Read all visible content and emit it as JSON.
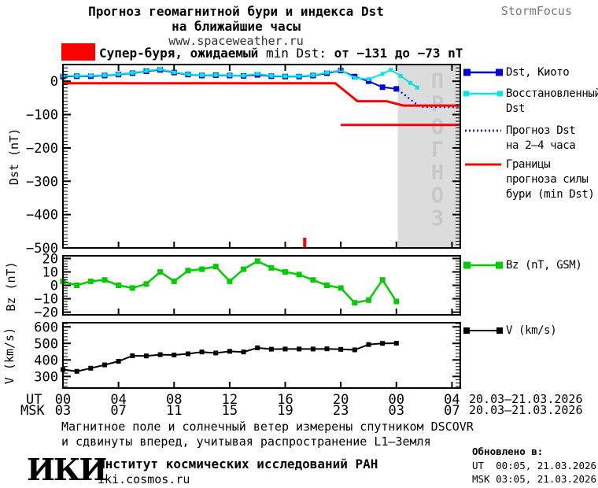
{
  "header": {
    "title_line1": "Прогноз геомагнитной бури и индекса Dst",
    "title_line2": "на ближайшие часы",
    "website": "www.spaceweather.ru",
    "brand": "StormFocus"
  },
  "alert": {
    "level_label": "Супер-буря, ожидаемый",
    "metric_label": "min Dst:",
    "range_label": "от −131 до −73 nT"
  },
  "colors": {
    "kyoto_blue": "#0000dd",
    "reconstructed_cyan": "#00e6e6",
    "forecast_blue": "#2020e0",
    "boundary_red": "#ff0000",
    "bz_green": "#00cc00",
    "v_black": "#000000",
    "alert_red": "#ff0000",
    "forecast_zone_gray": "#dcdcdc",
    "forecast_watermark_gray": "#c8c8c8",
    "brand_gray": "#787878"
  },
  "legend_dst": [
    {
      "lines": [
        "Dst, Киото"
      ]
    },
    {
      "lines": [
        "Восстановленный",
        "Dst"
      ]
    },
    {
      "lines": [
        "Прогноз Dst",
        "на 2–4 часа"
      ]
    },
    {
      "lines": [
        "Границы",
        "прогноза силы",
        "бури (min Dst)"
      ]
    }
  ],
  "legend_bz": {
    "label": "Bz (nT, GSM)"
  },
  "legend_v": {
    "label": "V (km/s)"
  },
  "xaxis": {
    "ut_label": "UT",
    "msk_label": "MSK",
    "ut_ticks": [
      "00",
      "04",
      "08",
      "12",
      "16",
      "20",
      "00",
      "04"
    ],
    "msk_ticks": [
      "03",
      "07",
      "11",
      "15",
      "19",
      "23",
      "03",
      "07"
    ],
    "tick_hours": [
      0,
      4,
      8,
      12,
      16,
      20,
      24,
      28
    ],
    "ut_date_range": "20.03–21.03.2026",
    "msk_date_range": "20.03–21.03.2026"
  },
  "footer": {
    "note_line1": "Магнитное поле и солнечный ветер измерены спутником DSCOVR",
    "note_line2": "и сдвинуты вперед, учитывая распространение L1–Земля",
    "logo": "ИКИ",
    "institute": "Институт космических исследований РАН",
    "website": "iki.cosmos.ru",
    "updated_label": "Обновлено в:",
    "updated_ut": "UT  00:05, 21.03.2026",
    "updated_msk": "MSK 03:05, 21.03.2026"
  },
  "chart_data": [
    {
      "id": "dst",
      "type": "line",
      "ylabel": "Dst (nT)",
      "ylim": [
        -500,
        50
      ],
      "yticks": [
        {
          "v": 0,
          "label": "0"
        },
        {
          "v": -100,
          "label": "−100"
        },
        {
          "v": -200,
          "label": "−200"
        },
        {
          "v": -300,
          "label": "−300"
        },
        {
          "v": -400,
          "label": "−400"
        },
        {
          "v": -500,
          "label": "−500"
        }
      ],
      "xlim_hours": [
        0,
        28.6
      ],
      "series": [
        {
          "id": "kyoto",
          "name": "Dst, Киото",
          "color_key": "kyoto_blue",
          "style": "line+squares",
          "marker_size": 7,
          "width": 2,
          "points": [
            [
              0,
              14
            ],
            [
              1,
              15
            ],
            [
              2,
              15
            ],
            [
              3,
              17
            ],
            [
              4,
              20
            ],
            [
              5,
              24
            ],
            [
              6,
              30
            ],
            [
              7,
              34
            ],
            [
              8,
              26
            ],
            [
              9,
              20
            ],
            [
              10,
              17
            ],
            [
              11,
              18
            ],
            [
              12,
              17
            ],
            [
              13,
              16
            ],
            [
              14,
              19
            ],
            [
              15,
              15
            ],
            [
              16,
              14
            ],
            [
              17,
              14
            ],
            [
              18,
              17
            ],
            [
              19,
              24
            ],
            [
              20,
              32
            ],
            [
              21,
              14
            ],
            [
              22,
              0
            ],
            [
              23,
              -18
            ],
            [
              24,
              -23
            ]
          ]
        },
        {
          "id": "reconstructed",
          "name": "Восстановленный Dst",
          "color_key": "reconstructed_cyan",
          "style": "line+squares",
          "marker_size": 5,
          "width": 2,
          "points": [
            [
              0,
              16
            ],
            [
              1,
              16
            ],
            [
              2,
              17
            ],
            [
              3,
              18
            ],
            [
              4,
              21
            ],
            [
              5,
              25
            ],
            [
              6,
              31
            ],
            [
              7,
              36
            ],
            [
              8,
              27
            ],
            [
              9,
              21
            ],
            [
              10,
              18
            ],
            [
              11,
              19
            ],
            [
              12,
              18
            ],
            [
              13,
              17
            ],
            [
              14,
              22
            ],
            [
              15,
              16
            ],
            [
              16,
              15
            ],
            [
              17,
              15
            ],
            [
              18,
              18
            ],
            [
              19,
              26
            ],
            [
              20,
              33
            ],
            [
              21,
              10
            ],
            [
              22,
              6
            ],
            [
              23,
              22
            ],
            [
              23.6,
              34
            ],
            [
              24.3,
              16
            ],
            [
              25,
              -5
            ],
            [
              25.5,
              -19
            ]
          ]
        },
        {
          "id": "forecast",
          "name": "Прогноз Dst на 2–4 часа",
          "color_key": "forecast_blue",
          "style": "dotted",
          "width": 2.5,
          "points": [
            [
              24.1,
              -25
            ],
            [
              25.7,
              -77
            ],
            [
              28.4,
              -78
            ]
          ]
        },
        {
          "id": "boundary-upper",
          "name": "Границы прогноза силы бури (min Dst)",
          "color_key": "boundary_red",
          "style": "line",
          "width": 3,
          "points": [
            [
              0,
              -6
            ],
            [
              19.6,
              -6
            ],
            [
              21.2,
              -60
            ],
            [
              23.3,
              -60
            ],
            [
              24.5,
              -73
            ],
            [
              28.6,
              -73
            ]
          ]
        },
        {
          "id": "boundary-lower",
          "name": "Границы прогноза силы бури (min Dst)",
          "color_key": "boundary_red",
          "style": "line",
          "width": 3,
          "points": [
            [
              20,
              -131
            ],
            [
              28.6,
              -131
            ]
          ]
        }
      ],
      "annotations": {
        "forecast_zone_start_hour": 24.1,
        "watermark": "ПРОГНОЗ",
        "onset_marker_hour": 17.4,
        "expected_min_dst_range": [
          -131,
          -73
        ]
      }
    },
    {
      "id": "bz",
      "type": "line",
      "ylabel": "Bz (nT)",
      "ylim": [
        -22,
        22
      ],
      "yticks": [
        {
          "v": 20,
          "label": "20"
        },
        {
          "v": 10,
          "label": "10"
        },
        {
          "v": 0,
          "label": "0"
        },
        {
          "v": -10,
          "label": "−10"
        },
        {
          "v": -20,
          "label": "−20"
        }
      ],
      "xlim_hours": [
        0,
        28.6
      ],
      "series": [
        {
          "id": "bz",
          "name": "Bz (nT, GSM)",
          "color_key": "bz_green",
          "style": "line+squares",
          "marker_size": 7,
          "width": 2.5,
          "points": [
            [
              0,
              3
            ],
            [
              1,
              0
            ],
            [
              2,
              3
            ],
            [
              3,
              4
            ],
            [
              4,
              0
            ],
            [
              5,
              -2
            ],
            [
              6,
              1
            ],
            [
              7,
              10
            ],
            [
              8,
              3
            ],
            [
              9,
              11
            ],
            [
              10,
              12
            ],
            [
              11,
              14
            ],
            [
              12,
              3
            ],
            [
              13,
              12
            ],
            [
              14,
              18
            ],
            [
              15,
              13
            ],
            [
              16,
              10
            ],
            [
              17,
              8
            ],
            [
              18,
              4
            ],
            [
              19,
              0
            ],
            [
              20,
              -2
            ],
            [
              21,
              -13
            ],
            [
              22,
              -11
            ],
            [
              23,
              4
            ],
            [
              24,
              -12
            ]
          ]
        }
      ]
    },
    {
      "id": "v",
      "type": "line",
      "ylabel": "V (km/s)",
      "ylim": [
        230,
        625
      ],
      "yticks": [
        {
          "v": 600,
          "label": "600"
        },
        {
          "v": 500,
          "label": "500"
        },
        {
          "v": 400,
          "label": "400"
        },
        {
          "v": 300,
          "label": "300"
        }
      ],
      "xlim_hours": [
        0,
        28.6
      ],
      "series": [
        {
          "id": "v",
          "name": "V (km/s)",
          "color_key": "v_black",
          "style": "line+squares",
          "marker_size": 6,
          "width": 2,
          "points": [
            [
              0,
              342
            ],
            [
              1,
              331
            ],
            [
              2,
              350
            ],
            [
              3,
              370
            ],
            [
              4,
              392
            ],
            [
              5,
              425
            ],
            [
              6,
              424
            ],
            [
              7,
              432
            ],
            [
              8,
              430
            ],
            [
              9,
              437
            ],
            [
              10,
              448
            ],
            [
              11,
              442
            ],
            [
              12,
              452
            ],
            [
              13,
              448
            ],
            [
              14,
              473
            ],
            [
              15,
              465
            ],
            [
              16,
              466
            ],
            [
              17,
              466
            ],
            [
              18,
              466
            ],
            [
              19,
              467
            ],
            [
              20,
              464
            ],
            [
              21,
              461
            ],
            [
              22,
              493
            ],
            [
              23,
              500
            ],
            [
              24,
              501
            ]
          ]
        }
      ]
    }
  ]
}
